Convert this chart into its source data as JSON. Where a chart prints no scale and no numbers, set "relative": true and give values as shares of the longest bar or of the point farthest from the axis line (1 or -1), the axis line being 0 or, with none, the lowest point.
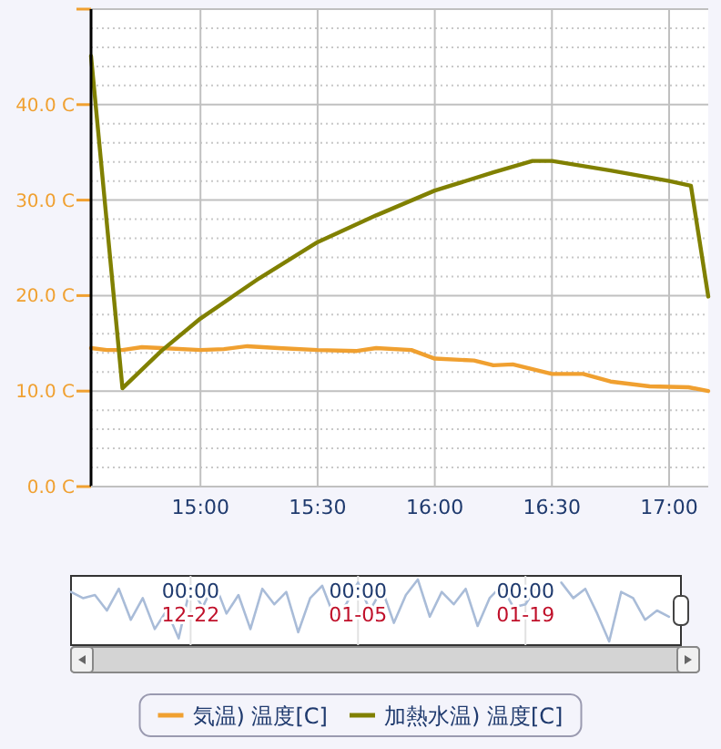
{
  "chart_data": [
    {
      "type": "line",
      "series": [
        {
          "name": "気温) 温度[C]",
          "color": "#f0a030",
          "x": [
            14.533,
            14.6,
            14.667,
            14.75,
            14.833,
            15.0,
            15.1,
            15.2,
            15.333,
            15.5,
            15.667,
            15.75,
            15.9,
            16.0,
            16.167,
            16.25,
            16.333,
            16.5,
            16.633,
            16.75,
            16.917,
            17.083,
            17.167
          ],
          "values": [
            14.5,
            14.3,
            14.3,
            14.6,
            14.5,
            14.3,
            14.4,
            14.7,
            14.5,
            14.3,
            14.2,
            14.5,
            14.3,
            13.4,
            13.2,
            12.7,
            12.8,
            11.8,
            11.8,
            11.0,
            10.5,
            10.4,
            10.0
          ]
        },
        {
          "name": "加熱水温) 温度[C]",
          "color": "#808000",
          "x": [
            14.533,
            14.667,
            14.833,
            15.0,
            15.25,
            15.5,
            15.75,
            16.0,
            16.25,
            16.417,
            16.5,
            16.75,
            17.0,
            17.093,
            17.167
          ],
          "values": [
            45.1,
            10.3,
            14.2,
            17.6,
            21.8,
            25.6,
            28.4,
            31.0,
            32.9,
            34.1,
            34.1,
            33.1,
            32.0,
            31.5,
            19.9
          ]
        }
      ],
      "xlim": [
        14.533,
        17.167
      ],
      "xticks": [
        {
          "value": 15,
          "label": "15:00"
        },
        {
          "value": 15.5,
          "label": "15:30"
        },
        {
          "value": 16,
          "label": "16:00"
        },
        {
          "value": 16.5,
          "label": "16:30"
        },
        {
          "value": 17,
          "label": "17:00"
        }
      ],
      "ylim": [
        0,
        50
      ],
      "yticks": [
        {
          "value": 0,
          "label": "0.0 C"
        },
        {
          "value": 10,
          "label": "10.0 C"
        },
        {
          "value": 20,
          "label": "20.0 C"
        },
        {
          "value": 30,
          "label": "30.0 C"
        },
        {
          "value": 40,
          "label": "40.0 C"
        }
      ],
      "grid": true,
      "legend": "bottom",
      "line_style": "solid",
      "marker": "none"
    },
    {
      "type": "line",
      "relative": true,
      "series": [
        {
          "color": "#a9bcd8",
          "values": [
            0.8,
            0.7,
            0.75,
            0.5,
            0.85,
            0.35,
            0.7,
            0.2,
            0.5,
            0.05,
            0.9,
            0.55,
            0.95,
            0.45,
            0.75,
            0.2,
            0.85,
            0.6,
            0.8,
            0.15,
            0.7,
            0.9,
            0.4,
            0.6,
            0.95,
            0.5,
            0.85,
            0.3,
            0.75,
            1.0,
            0.4,
            0.8,
            0.6,
            0.85,
            0.25,
            0.7,
            0.9,
            0.55,
            0.6,
            0.9,
            null,
            0.95,
            0.7,
            0.85,
            0.45,
            0.0,
            0.8,
            0.7,
            0.35,
            0.5,
            0.4,
            null
          ]
        }
      ],
      "categories": [
        null,
        null,
        null,
        null,
        null,
        null,
        null,
        null,
        null,
        null,
        "00:00\n12-22",
        null,
        null,
        null,
        null,
        null,
        null,
        null,
        null,
        null,
        null,
        null,
        null,
        null,
        "00:00\n01-05",
        null,
        null,
        null,
        null,
        null,
        null,
        null,
        null,
        null,
        null,
        null,
        null,
        null,
        "00:00\n01-19",
        null,
        null,
        null,
        null,
        null,
        null,
        null,
        null,
        null,
        null,
        null,
        null,
        null
      ],
      "tick_labels": "x",
      "grid": "x"
    }
  ]
}
